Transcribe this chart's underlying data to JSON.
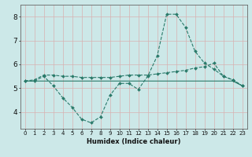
{
  "xlabel": "Humidex (Indice chaleur)",
  "x_values": [
    0,
    1,
    2,
    3,
    4,
    5,
    6,
    7,
    8,
    9,
    10,
    11,
    12,
    13,
    14,
    15,
    16,
    17,
    18,
    19,
    20,
    21,
    22,
    23
  ],
  "line1": [
    5.3,
    5.3,
    5.5,
    5.1,
    4.6,
    4.2,
    3.7,
    3.55,
    3.8,
    4.7,
    5.2,
    5.2,
    4.95,
    5.5,
    6.35,
    8.1,
    8.1,
    7.55,
    6.55,
    6.05,
    5.8,
    5.5,
    5.35,
    5.1
  ],
  "line2": [
    5.3,
    5.35,
    5.55,
    5.55,
    5.5,
    5.5,
    5.45,
    5.45,
    5.45,
    5.45,
    5.5,
    5.55,
    5.55,
    5.55,
    5.6,
    5.65,
    5.7,
    5.75,
    5.85,
    5.9,
    6.05,
    5.5,
    5.35,
    5.1
  ],
  "line3": [
    5.3,
    5.3,
    5.3,
    5.3,
    5.3,
    5.3,
    5.3,
    5.3,
    5.3,
    5.3,
    5.3,
    5.3,
    5.3,
    5.3,
    5.3,
    5.3,
    5.3,
    5.3,
    5.3,
    5.3,
    5.3,
    5.3,
    5.3,
    5.1
  ],
  "line_color": "#2a7a6a",
  "bg_color": "#cce8e8",
  "grid_color": "#d8b0b0",
  "axis_color": "#666666",
  "ylim": [
    3.3,
    8.5
  ],
  "xlim": [
    -0.5,
    23.5
  ],
  "yticks": [
    4,
    5,
    6,
    7,
    8
  ],
  "xtick_labels": [
    "0",
    "1",
    "2",
    "3",
    "4",
    "5",
    "6",
    "7",
    "8",
    "9",
    "10",
    "11",
    "12",
    "13",
    "14",
    "15",
    "16",
    "17",
    "18",
    "19",
    "20",
    "21",
    "22",
    "23"
  ],
  "xlabel_fontsize": 6.0,
  "ytick_fontsize": 6.5,
  "xtick_fontsize": 5.0,
  "marker_size": 2.0,
  "linewidth": 0.8
}
